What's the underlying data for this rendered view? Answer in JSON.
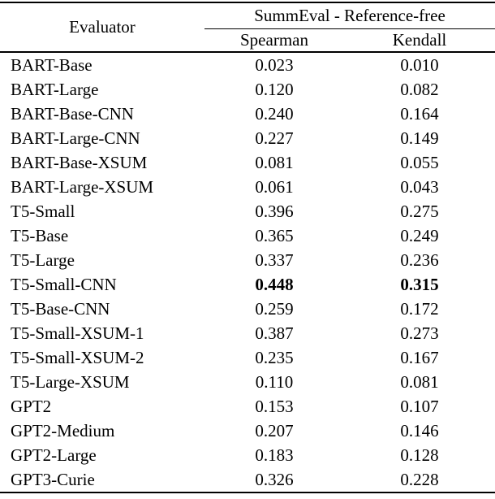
{
  "table": {
    "evaluator_header": "Evaluator",
    "group_header": "SummEval - Reference-free",
    "sub_headers": [
      "Spearman",
      "Kendall"
    ],
    "rows": [
      {
        "evaluator": "BART-Base",
        "spearman": "0.023",
        "kendall": "0.010",
        "bold": false
      },
      {
        "evaluator": "BART-Large",
        "spearman": "0.120",
        "kendall": "0.082",
        "bold": false
      },
      {
        "evaluator": "BART-Base-CNN",
        "spearman": "0.240",
        "kendall": "0.164",
        "bold": false
      },
      {
        "evaluator": "BART-Large-CNN",
        "spearman": "0.227",
        "kendall": "0.149",
        "bold": false
      },
      {
        "evaluator": "BART-Base-XSUM",
        "spearman": "0.081",
        "kendall": "0.055",
        "bold": false
      },
      {
        "evaluator": "BART-Large-XSUM",
        "spearman": "0.061",
        "kendall": "0.043",
        "bold": false
      },
      {
        "evaluator": "T5-Small",
        "spearman": "0.396",
        "kendall": "0.275",
        "bold": false
      },
      {
        "evaluator": "T5-Base",
        "spearman": "0.365",
        "kendall": "0.249",
        "bold": false
      },
      {
        "evaluator": "T5-Large",
        "spearman": "0.337",
        "kendall": "0.236",
        "bold": false
      },
      {
        "evaluator": "T5-Small-CNN",
        "spearman": "0.448",
        "kendall": "0.315",
        "bold": true
      },
      {
        "evaluator": "T5-Base-CNN",
        "spearman": "0.259",
        "kendall": "0.172",
        "bold": false
      },
      {
        "evaluator": "T5-Small-XSUM-1",
        "spearman": "0.387",
        "kendall": "0.273",
        "bold": false
      },
      {
        "evaluator": "T5-Small-XSUM-2",
        "spearman": "0.235",
        "kendall": "0.167",
        "bold": false
      },
      {
        "evaluator": "T5-Large-XSUM",
        "spearman": "0.110",
        "kendall": "0.081",
        "bold": false
      },
      {
        "evaluator": "GPT2",
        "spearman": "0.153",
        "kendall": "0.107",
        "bold": false
      },
      {
        "evaluator": "GPT2-Medium",
        "spearman": "0.207",
        "kendall": "0.146",
        "bold": false
      },
      {
        "evaluator": "GPT2-Large",
        "spearman": "0.183",
        "kendall": "0.128",
        "bold": false
      },
      {
        "evaluator": "GPT3-Curie",
        "spearman": "0.326",
        "kendall": "0.228",
        "bold": false
      }
    ]
  }
}
